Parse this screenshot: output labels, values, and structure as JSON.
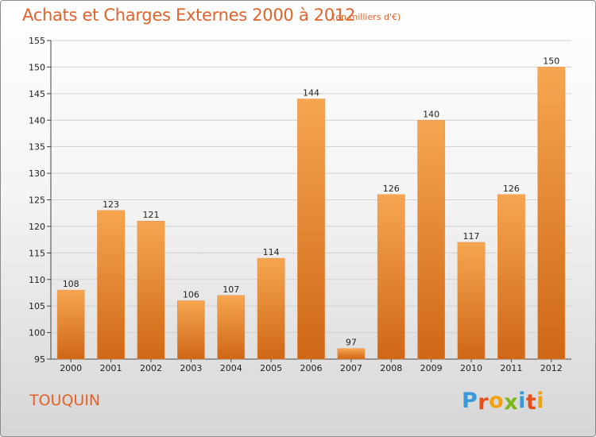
{
  "header": {
    "title": "Achats et Charges Externes 2000 à 2012",
    "subtitle": "(en milliers d'€)"
  },
  "footer": {
    "commune": "TOUQUIN",
    "logo_letters": [
      "P",
      "r",
      "o",
      "x",
      "i",
      "t",
      "i"
    ]
  },
  "colors": {
    "title": "#e0632a",
    "bar_top": "#f6a650",
    "bar_bottom": "#cf6716",
    "logo": [
      "#3a9ad9",
      "#e94e1b",
      "#f2a20c",
      "#7db51d",
      "#3a9ad9",
      "#e94e1b",
      "#f2a20c"
    ]
  },
  "chart_data": {
    "type": "bar",
    "title": "Achats et Charges Externes 2000 à 2012",
    "subtitle": "(en milliers d'€)",
    "categories": [
      "2000",
      "2001",
      "2002",
      "2003",
      "2004",
      "2005",
      "2006",
      "2007",
      "2008",
      "2009",
      "2010",
      "2011",
      "2012"
    ],
    "values": [
      108,
      123,
      121,
      106,
      107,
      114,
      144,
      97,
      126,
      140,
      117,
      126,
      150
    ],
    "value_labels": [
      "108",
      "123",
      "121",
      "106",
      "107",
      "114",
      "144",
      "97",
      "126",
      "140",
      "117",
      "126",
      "150"
    ],
    "ylim": [
      95,
      155
    ],
    "yticks": [
      95,
      100,
      105,
      110,
      115,
      120,
      125,
      130,
      135,
      140,
      145,
      150,
      155
    ],
    "ytick_labels": [
      "95",
      "100",
      "105",
      "110",
      "115",
      "120",
      "125",
      "130",
      "135",
      "140",
      "145",
      "150",
      "155"
    ],
    "grid": true,
    "legend": "none",
    "xlabel": "",
    "ylabel": ""
  }
}
